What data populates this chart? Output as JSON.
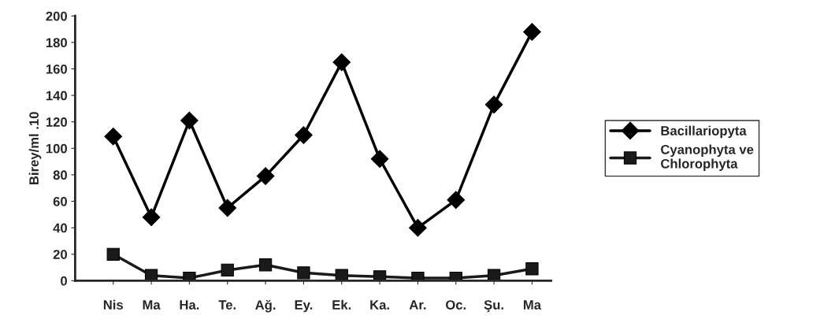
{
  "chart_data": {
    "type": "line",
    "ylabel": "Birey/ml .10",
    "categories": [
      "Nis",
      "Ma",
      "Ha.",
      "Te.",
      "Ağ.",
      "Ey.",
      "Ek.",
      "Ka.",
      "Ar.",
      "Oc.",
      "Şu.",
      "Ma"
    ],
    "series": [
      {
        "name": "Bacillariopyta",
        "color": "#000000",
        "marker": "diamond",
        "values": [
          109,
          48,
          121,
          55,
          79,
          110,
          165,
          92,
          40,
          61,
          133,
          188
        ]
      },
      {
        "name": "Cyanophyta ve\nChlorophyta",
        "color": "#1a1a1a",
        "marker": "square",
        "values": [
          20,
          4,
          2,
          8,
          12,
          6,
          4,
          3,
          2,
          2,
          4,
          9
        ]
      }
    ],
    "ylim": [
      0,
      200
    ],
    "yticks": [
      0,
      20,
      40,
      60,
      80,
      100,
      120,
      140,
      160,
      180,
      200
    ],
    "grid": false,
    "legend": "right",
    "line_style": "solid"
  }
}
